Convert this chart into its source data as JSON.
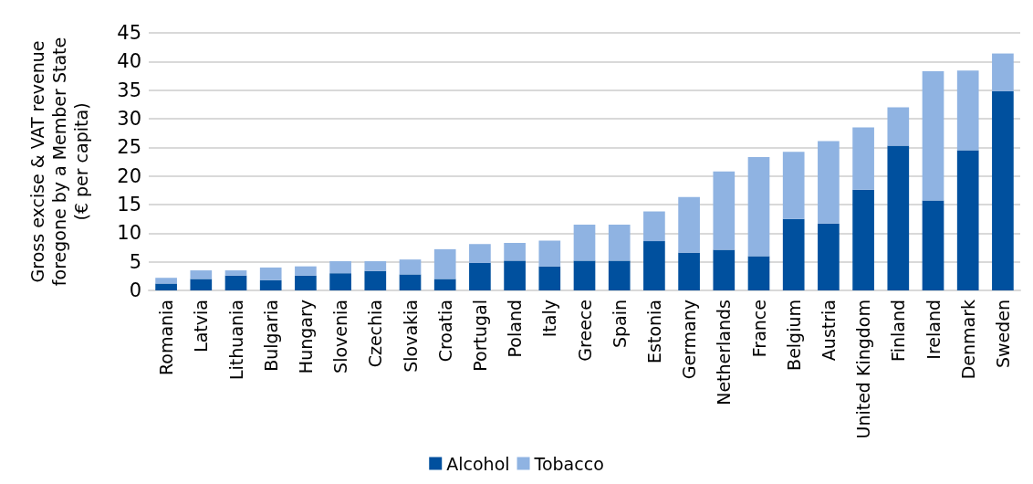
{
  "chart_data": {
    "type": "bar",
    "stacked": true,
    "ylabel": "Gross excise & VAT revenue\nforegone by a Member State\n(€ per capita)",
    "categories": [
      "Romania",
      "Latvia",
      "Lithuania",
      "Bulgaria",
      "Hungary",
      "Slovenia",
      "Czechia",
      "Slovakia",
      "Croatia",
      "Portugal",
      "Poland",
      "Italy",
      "Greece",
      "Spain",
      "Estonia",
      "Germany",
      "Netherlands",
      "France",
      "Belgium",
      "Austria",
      "United Kingdom",
      "Finland",
      "Ireland",
      "Denmark",
      "Sweden"
    ],
    "series": [
      {
        "name": "Alcohol",
        "color": "#00509e",
        "values": [
          1.2,
          2.0,
          2.6,
          1.8,
          2.6,
          3.0,
          3.4,
          2.8,
          2.0,
          4.8,
          5.2,
          4.2,
          5.2,
          5.2,
          8.6,
          6.6,
          7.1,
          6.0,
          12.5,
          11.7,
          17.6,
          25.3,
          15.7,
          24.5,
          34.8
        ]
      },
      {
        "name": "Tobacco",
        "color": "#8fb3e2",
        "values": [
          1.0,
          1.5,
          0.9,
          2.2,
          1.6,
          2.1,
          1.7,
          2.6,
          5.2,
          3.3,
          3.1,
          4.5,
          6.3,
          6.3,
          5.2,
          9.7,
          13.7,
          17.3,
          11.7,
          14.4,
          10.9,
          6.7,
          22.6,
          13.9,
          6.6
        ]
      }
    ],
    "ylim": [
      0,
      45
    ],
    "yticks": [
      0,
      5,
      10,
      15,
      20,
      25,
      30,
      35,
      40,
      45
    ],
    "grid": "y",
    "legend": "bottom"
  }
}
